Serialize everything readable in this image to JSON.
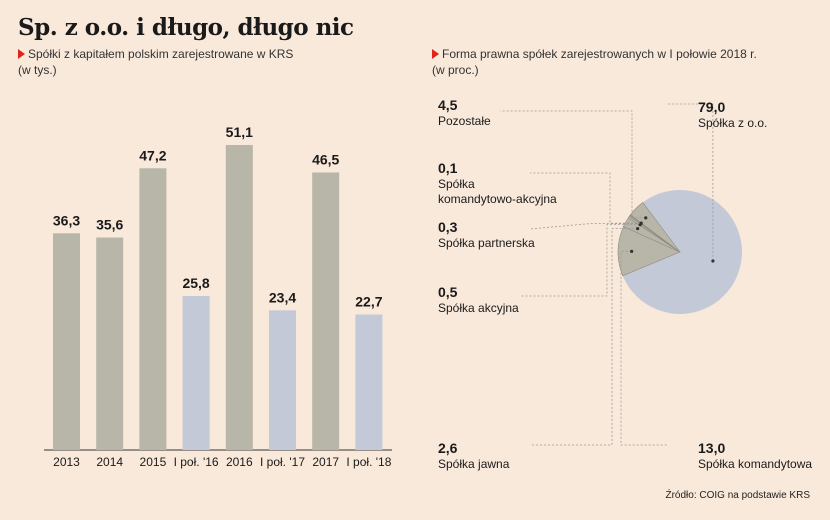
{
  "title": "Sp. z o.o. i długo, długo nic",
  "source": "Źródło: COIG na podstawie KRS",
  "colors": {
    "background": "#f9e9db",
    "bar_year": "#b8b6a8",
    "bar_half": "#c4c9d8",
    "pie_main": "#c4c9d8",
    "pie_other": "#b8b6a8",
    "leader": "#999999",
    "accent": "#e2231a"
  },
  "chart_data": [
    {
      "type": "bar",
      "title": "Spółki z kapitałem polskim zarejestrowane w KRS",
      "subtitle": "(w tys.)",
      "categories": [
        "2013",
        "2014",
        "2015",
        "I poł. '16",
        "2016",
        "I poł. '17",
        "2017",
        "I poł. '18"
      ],
      "values": [
        36.3,
        35.6,
        47.2,
        25.8,
        51.1,
        23.4,
        46.5,
        22.7
      ],
      "value_labels": [
        "36,3",
        "35,6",
        "47,2",
        "25,8",
        "51,1",
        "23,4",
        "46,5",
        "22,7"
      ],
      "series_kind": [
        "year",
        "year",
        "year",
        "half",
        "year",
        "half",
        "year",
        "half"
      ],
      "ylim": [
        0,
        51.1
      ],
      "grid": false
    },
    {
      "type": "pie",
      "title": "Forma prawna spółek zarejestrowanych w I połowie 2018 r.",
      "subtitle": "(w proc.)",
      "slices": [
        {
          "label": "Spółka z o.o.",
          "value": 79.0,
          "value_label": "79,0"
        },
        {
          "label": "Spółka komandytowa",
          "value": 13.0,
          "value_label": "13,0"
        },
        {
          "label": "Spółka jawna",
          "value": 2.6,
          "value_label": "2,6"
        },
        {
          "label": "Spółka akcyjna",
          "value": 0.5,
          "value_label": "0,5"
        },
        {
          "label": "Spółka partnerska",
          "value": 0.3,
          "value_label": "0,3"
        },
        {
          "label": "Spółka komandytowo-akcyjna",
          "value": 0.1,
          "value_label": "0,1"
        },
        {
          "label": "Pozostałe",
          "value": 4.5,
          "value_label": "4,5"
        }
      ]
    }
  ]
}
